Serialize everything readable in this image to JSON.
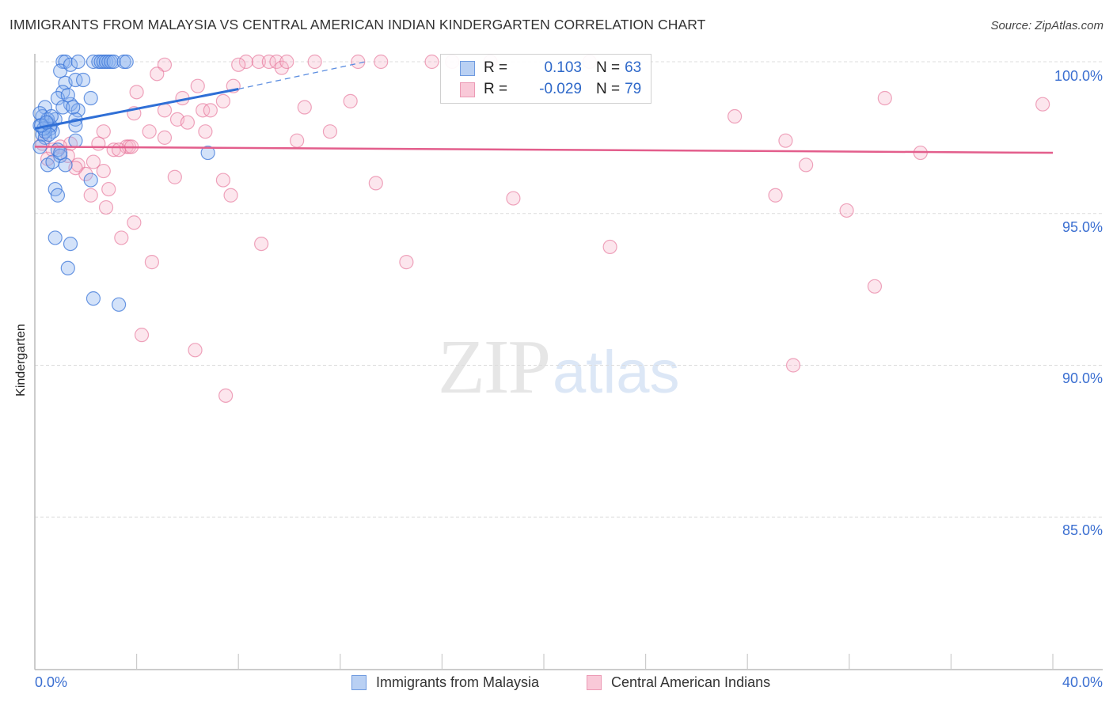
{
  "header": {
    "title": "IMMIGRANTS FROM MALAYSIA VS CENTRAL AMERICAN INDIAN KINDERGARTEN CORRELATION CHART",
    "source": "Source: ZipAtlas.com"
  },
  "colors": {
    "blue": "#3b75d8",
    "blue_fill": "#a9c6f0",
    "pink": "#e56a93",
    "pink_fill": "#f7bfd1",
    "axis_label": "#3b6fd1",
    "grid": "#dddddd"
  },
  "legend": {
    "rows": [
      {
        "r_label": "R =",
        "r_value": "0.103",
        "n_label": "N =",
        "n_value": "63"
      },
      {
        "r_label": "R =",
        "r_value": "-0.029",
        "n_label": "N =",
        "n_value": "79"
      }
    ]
  },
  "bottom_legend": {
    "series1": "Immigrants from Malaysia",
    "series2": "Central American Indians"
  },
  "axes": {
    "y_label": "Kindergarten",
    "y_ticks": [
      "100.0%",
      "95.0%",
      "90.0%",
      "85.0%"
    ],
    "x_min_label": "0.0%",
    "x_max_label": "40.0%"
  },
  "watermark": {
    "zip": "ZIP",
    "atlas": "atlas"
  },
  "chart_data": {
    "type": "scatter",
    "title": "IMMIGRANTS FROM MALAYSIA VS CENTRAL AMERICAN INDIAN KINDERGARTEN CORRELATION CHART",
    "xlabel": "",
    "ylabel": "Kindergarten",
    "xlim": [
      0,
      40
    ],
    "ylim": [
      80.2,
      101.0
    ],
    "x_ticks": [
      "0.0%",
      "40.0%"
    ],
    "y_ticks": [
      100,
      95,
      90,
      85
    ],
    "grid": true,
    "legend_position": "top-center / bottom",
    "series": [
      {
        "name": "Immigrants from Malaysia",
        "color": "#3b75d8",
        "R": 0.103,
        "N": 63,
        "trend": {
          "x0": 0,
          "y0": 97.8,
          "x1": 8.0,
          "y1": 99.1,
          "dashed_to_x": 13.0,
          "dashed_to_y": 100.0
        },
        "points": [
          [
            1.1,
            100.0
          ],
          [
            1.2,
            100.0
          ],
          [
            1.0,
            99.7
          ],
          [
            1.4,
            99.9
          ],
          [
            1.2,
            99.3
          ],
          [
            1.1,
            99.0
          ],
          [
            0.9,
            98.8
          ],
          [
            1.6,
            99.4
          ],
          [
            1.4,
            98.6
          ],
          [
            1.7,
            98.4
          ],
          [
            1.1,
            98.5
          ],
          [
            1.3,
            98.9
          ],
          [
            1.9,
            99.4
          ],
          [
            2.2,
            98.8
          ],
          [
            1.6,
            98.1
          ],
          [
            0.4,
            98.5
          ],
          [
            0.3,
            98.2
          ],
          [
            0.5,
            98.0
          ],
          [
            0.2,
            97.9
          ],
          [
            0.6,
            97.8
          ],
          [
            0.7,
            97.7
          ],
          [
            0.3,
            97.6
          ],
          [
            0.4,
            97.5
          ],
          [
            0.8,
            98.1
          ],
          [
            0.6,
            97.9
          ],
          [
            0.5,
            98.1
          ],
          [
            1.6,
            97.9
          ],
          [
            1.6,
            97.4
          ],
          [
            0.2,
            97.2
          ],
          [
            0.4,
            97.7
          ],
          [
            0.9,
            97.1
          ],
          [
            1.0,
            96.9
          ],
          [
            0.5,
            96.6
          ],
          [
            0.7,
            96.7
          ],
          [
            1.2,
            96.6
          ],
          [
            2.2,
            96.1
          ],
          [
            0.8,
            95.8
          ],
          [
            0.9,
            95.6
          ],
          [
            0.8,
            94.2
          ],
          [
            1.4,
            94.0
          ],
          [
            1.3,
            93.2
          ],
          [
            2.3,
            92.2
          ],
          [
            3.3,
            92.0
          ],
          [
            6.8,
            97.0
          ],
          [
            2.3,
            100.0
          ],
          [
            2.5,
            100.0
          ],
          [
            2.6,
            100.0
          ],
          [
            2.7,
            100.0
          ],
          [
            2.8,
            100.0
          ],
          [
            2.9,
            100.0
          ],
          [
            3.0,
            100.0
          ],
          [
            3.1,
            100.0
          ],
          [
            3.5,
            100.0
          ],
          [
            3.6,
            100.0
          ],
          [
            1.7,
            100.0
          ],
          [
            0.2,
            98.3
          ],
          [
            0.35,
            97.8
          ],
          [
            0.55,
            97.6
          ],
          [
            0.65,
            98.2
          ],
          [
            0.25,
            97.9
          ],
          [
            1.0,
            97.0
          ],
          [
            1.5,
            98.5
          ],
          [
            0.45,
            98.0
          ]
        ]
      },
      {
        "name": "Central American Indians",
        "color": "#e56a93",
        "R": -0.029,
        "N": 79,
        "trend": {
          "x0": 0,
          "y0": 97.2,
          "x1": 40,
          "y1": 97.0
        },
        "points": [
          [
            5.1,
            99.9
          ],
          [
            4.8,
            99.6
          ],
          [
            4.0,
            99.0
          ],
          [
            5.8,
            98.8
          ],
          [
            6.4,
            99.2
          ],
          [
            3.9,
            98.3
          ],
          [
            4.5,
            97.7
          ],
          [
            5.1,
            98.4
          ],
          [
            5.6,
            98.1
          ],
          [
            6.0,
            98.0
          ],
          [
            6.6,
            98.4
          ],
          [
            6.9,
            98.4
          ],
          [
            7.4,
            98.7
          ],
          [
            7.8,
            99.2
          ],
          [
            6.7,
            97.7
          ],
          [
            5.1,
            97.5
          ],
          [
            8.3,
            100.0
          ],
          [
            8.8,
            100.0
          ],
          [
            9.2,
            100.0
          ],
          [
            9.5,
            100.0
          ],
          [
            9.7,
            99.8
          ],
          [
            9.9,
            100.0
          ],
          [
            11.0,
            100.0
          ],
          [
            12.7,
            100.0
          ],
          [
            13.6,
            100.0
          ],
          [
            15.6,
            100.0
          ],
          [
            17.9,
            100.0
          ],
          [
            8.0,
            99.9
          ],
          [
            10.6,
            98.5
          ],
          [
            12.4,
            98.7
          ],
          [
            10.3,
            97.4
          ],
          [
            11.6,
            97.7
          ],
          [
            2.7,
            97.7
          ],
          [
            2.5,
            97.3
          ],
          [
            3.1,
            97.1
          ],
          [
            3.6,
            97.2
          ],
          [
            3.7,
            97.2
          ],
          [
            3.3,
            97.1
          ],
          [
            1.4,
            97.3
          ],
          [
            1.0,
            97.2
          ],
          [
            1.3,
            96.9
          ],
          [
            1.7,
            96.6
          ],
          [
            2.3,
            96.7
          ],
          [
            2.7,
            96.4
          ],
          [
            2.0,
            96.3
          ],
          [
            0.5,
            96.8
          ],
          [
            0.7,
            97.1
          ],
          [
            1.6,
            96.5
          ],
          [
            5.5,
            96.2
          ],
          [
            7.4,
            96.1
          ],
          [
            2.9,
            95.8
          ],
          [
            2.2,
            95.6
          ],
          [
            2.8,
            95.2
          ],
          [
            7.7,
            95.6
          ],
          [
            13.4,
            96.0
          ],
          [
            3.9,
            94.7
          ],
          [
            3.4,
            94.2
          ],
          [
            4.6,
            93.4
          ],
          [
            8.9,
            94.0
          ],
          [
            14.6,
            93.4
          ],
          [
            4.2,
            91.0
          ],
          [
            6.3,
            90.5
          ],
          [
            7.5,
            89.0
          ],
          [
            18.8,
            95.5
          ],
          [
            22.6,
            93.9
          ],
          [
            27.5,
            98.2
          ],
          [
            29.1,
            95.6
          ],
          [
            29.5,
            97.4
          ],
          [
            30.3,
            96.6
          ],
          [
            31.9,
            95.1
          ],
          [
            33.0,
            92.6
          ],
          [
            33.4,
            98.8
          ],
          [
            34.8,
            97.0
          ],
          [
            39.6,
            98.6
          ],
          [
            29.8,
            90.0
          ],
          [
            21.8,
            100.0
          ],
          [
            16.4,
            100.0
          ],
          [
            0.3,
            97.3
          ],
          [
            3.8,
            97.2
          ]
        ]
      }
    ]
  }
}
